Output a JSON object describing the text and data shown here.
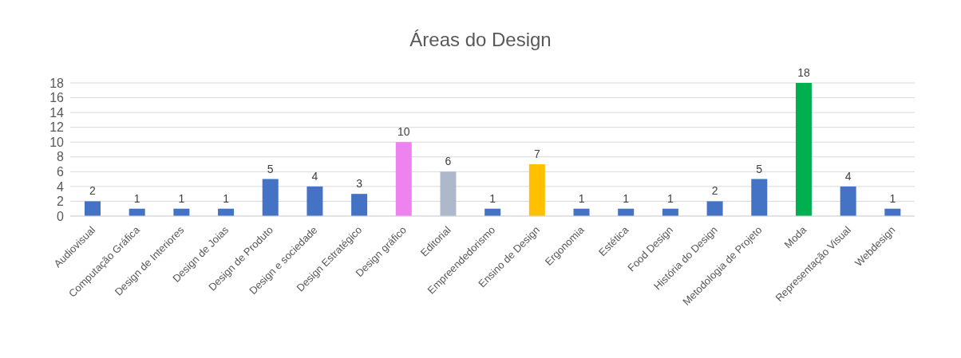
{
  "chart_data": {
    "type": "bar",
    "title": "Áreas do Design",
    "categories": [
      "Audiovisual",
      "Computação Gráfica",
      "Design de Interiores",
      "Design de Joias",
      "Design de Produto",
      "Design e sociedade",
      "Design Estratégico",
      "Design gráfico",
      "Editorial",
      "Empreendedorismo",
      "Ensino de Design",
      "Ergonomia",
      "Estética",
      "Food Design",
      "História do Design",
      "Metodologia de Projeto",
      "Moda",
      "Representação Visual",
      "Webdesign"
    ],
    "values": [
      2,
      1,
      1,
      1,
      5,
      4,
      3,
      10,
      6,
      1,
      7,
      1,
      1,
      1,
      2,
      5,
      18,
      4,
      1
    ],
    "colors": [
      "#4472c4",
      "#4472c4",
      "#4472c4",
      "#4472c4",
      "#4472c4",
      "#4472c4",
      "#4472c4",
      "#ee82ee",
      "#adb9ca",
      "#4472c4",
      "#ffc000",
      "#4472c4",
      "#4472c4",
      "#4472c4",
      "#4472c4",
      "#4472c4",
      "#00b050",
      "#4472c4",
      "#4472c4"
    ],
    "ylim": [
      0,
      18
    ],
    "yticks": [
      0,
      2,
      4,
      6,
      8,
      10,
      12,
      14,
      16,
      18
    ],
    "grid": "y",
    "data_labels": true
  }
}
